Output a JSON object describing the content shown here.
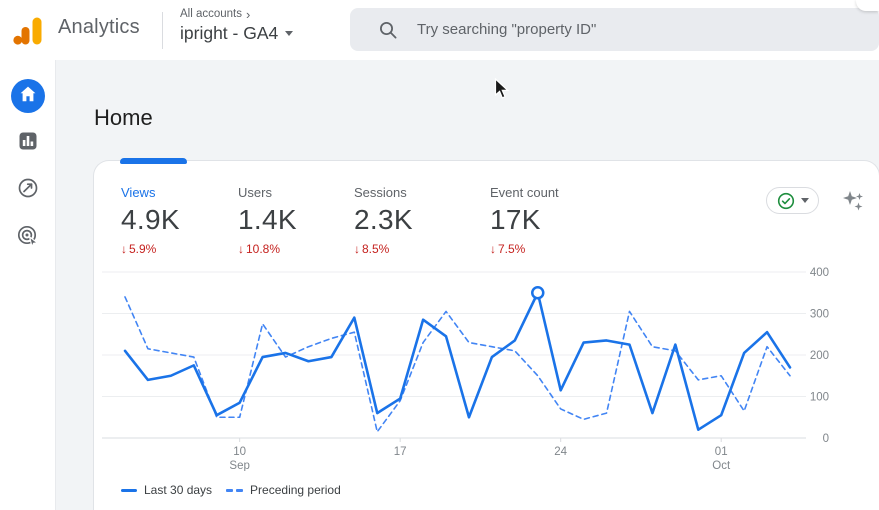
{
  "colors": {
    "accent_blue": "#1a73e8",
    "solid_line": "#1a73e8",
    "dashed_line": "#4285f4",
    "delta_red": "#c5221f",
    "check_green": "#1e8e3e",
    "logo_orange": "#e37400",
    "logo_yellow": "#f9ab00"
  },
  "header": {
    "app_name": "Analytics",
    "breadcrumb": "All accounts",
    "breadcrumb_chevron": "›",
    "property_name": "ipright - GA4",
    "search": {
      "placeholder": "Try searching \"property ID\""
    }
  },
  "sidebar": {
    "items": [
      {
        "id": "home",
        "icon": "home-icon",
        "active": true
      },
      {
        "id": "reports",
        "icon": "bar-chart-icon",
        "active": false
      },
      {
        "id": "explore",
        "icon": "explore-icon",
        "active": false
      },
      {
        "id": "advertising",
        "icon": "advertising-target-icon",
        "active": false
      }
    ]
  },
  "page": {
    "title": "Home"
  },
  "overview_card": {
    "metrics": [
      {
        "label": "Views",
        "value": "4.9K",
        "delta_arrow": "↓",
        "delta": "5.9%",
        "selected": true
      },
      {
        "label": "Users",
        "value": "1.4K",
        "delta_arrow": "↓",
        "delta": "10.8%",
        "selected": false
      },
      {
        "label": "Sessions",
        "value": "2.3K",
        "delta_arrow": "↓",
        "delta": "8.5%",
        "selected": false
      },
      {
        "label": "Event count",
        "value": "17K",
        "delta_arrow": "↓",
        "delta": "7.5%",
        "selected": false
      }
    ]
  },
  "chart_data": {
    "type": "line",
    "title": "",
    "xlabel": "",
    "ylabel": "",
    "ylim": [
      0,
      400
    ],
    "y_ticks": [
      0,
      100,
      200,
      300,
      400
    ],
    "grid": true,
    "legend_position": "bottom-left",
    "x_ticks": [
      {
        "index": 5,
        "lines": [
          "10",
          "Sep"
        ]
      },
      {
        "index": 12,
        "lines": [
          "17"
        ]
      },
      {
        "index": 19,
        "lines": [
          "24"
        ]
      },
      {
        "index": 26,
        "lines": [
          "01",
          "Oct"
        ]
      }
    ],
    "series": [
      {
        "name": "Last 30 days",
        "style": "solid",
        "color": "#1a73e8",
        "values": [
          210,
          140,
          150,
          175,
          55,
          85,
          195,
          205,
          185,
          195,
          290,
          60,
          95,
          285,
          245,
          50,
          195,
          235,
          350,
          115,
          230,
          235,
          225,
          60,
          225,
          20,
          55,
          205,
          255,
          170
        ]
      },
      {
        "name": "Preceding period",
        "style": "dashed",
        "color": "#4285f4",
        "values": [
          340,
          215,
          205,
          195,
          50,
          50,
          275,
          195,
          220,
          240,
          255,
          15,
          90,
          230,
          305,
          230,
          220,
          210,
          150,
          70,
          45,
          60,
          305,
          220,
          210,
          140,
          150,
          65,
          220,
          150
        ]
      }
    ],
    "highlight": {
      "series_index": 0,
      "point_index": 18,
      "value": 350
    }
  }
}
